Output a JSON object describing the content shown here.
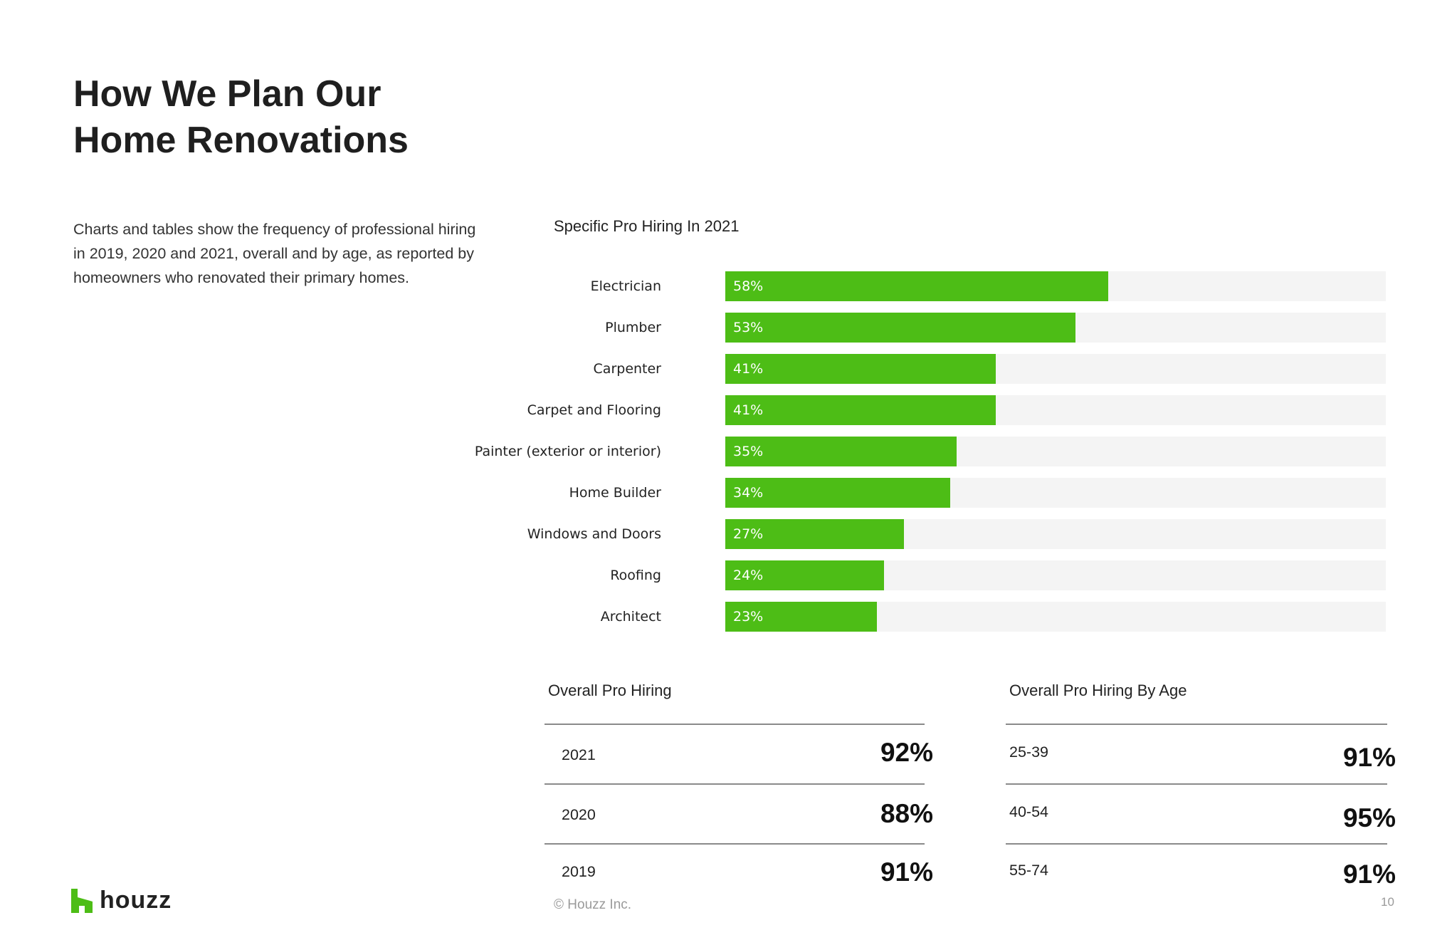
{
  "title": {
    "line1": "How We Plan Our",
    "line2": "Home Renovations"
  },
  "description": "Charts and tables show the frequency of professional hiring in 2019, 2020 and 2021, overall and by age, as reported by homeowners who renovated their primary homes.",
  "chart_data": {
    "type": "bar",
    "orientation": "horizontal",
    "title": "Specific Pro Hiring In 2021",
    "categories": [
      "Electrician",
      "Plumber",
      "Carpenter",
      "Carpet and Flooring",
      "Painter (exterior or interior)",
      "Home Builder",
      "Windows and Doors",
      "Roofing",
      "Architect"
    ],
    "values": [
      58,
      53,
      41,
      41,
      35,
      34,
      27,
      24,
      23
    ],
    "value_labels": [
      "58%",
      "53%",
      "41%",
      "41%",
      "35%",
      "34%",
      "27%",
      "24%",
      "23%"
    ],
    "xlim": [
      0,
      100
    ],
    "grid": false,
    "colors": {
      "bar": "#4dbd16",
      "track": "#f4f4f4"
    }
  },
  "overall": {
    "title": "Overall Pro Hiring",
    "rows": [
      {
        "label": "2021",
        "value": "92%"
      },
      {
        "label": "2020",
        "value": "88%"
      },
      {
        "label": "2019",
        "value": "91%"
      }
    ]
  },
  "by_age": {
    "title": "Overall Pro Hiring By Age",
    "rows": [
      {
        "label": "25-39",
        "value": "91%"
      },
      {
        "label": "40-54",
        "value": "95%"
      },
      {
        "label": "55-74",
        "value": "91%"
      }
    ]
  },
  "footer": {
    "logo_text": "houzz",
    "logo_icon": "houzz-logo-icon",
    "logo_color": "#4dbd16",
    "copyright": "© Houzz Inc.",
    "page_number": "10"
  }
}
